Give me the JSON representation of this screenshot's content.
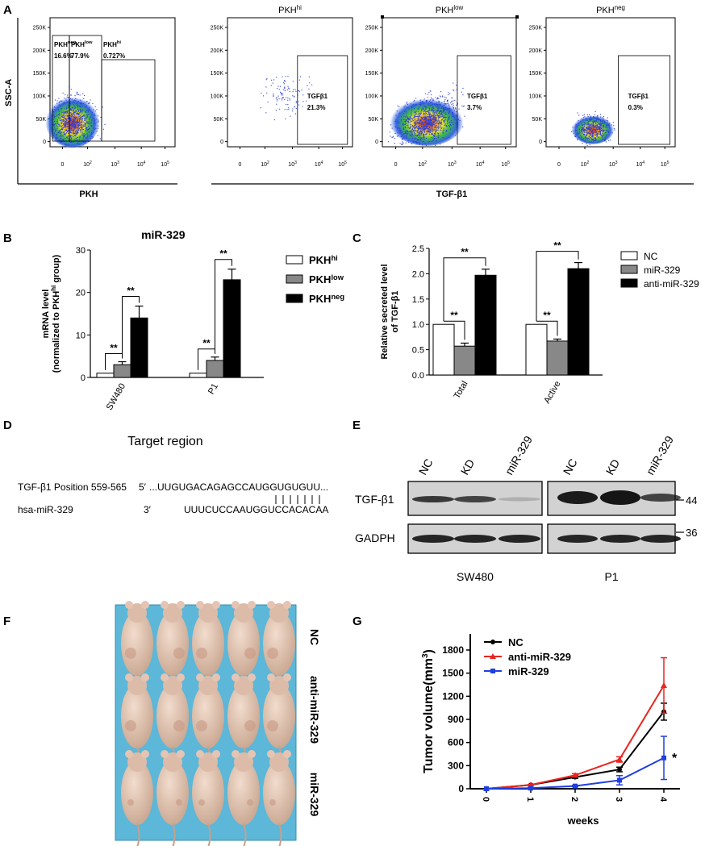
{
  "panels": {
    "a": "A",
    "b": "B",
    "c": "C",
    "d": "D",
    "e": "E",
    "f": "F",
    "g": "G"
  },
  "flow": {
    "y_ticks": [
      "250K",
      "200K",
      "150K",
      "100K",
      "50K",
      "0"
    ],
    "x_ticks": [
      "0",
      "10",
      "10",
      "10",
      "10"
    ],
    "x_exps": [
      "2",
      "3",
      "4",
      "5"
    ],
    "y_label": "SSC-A",
    "x_label_left": "PKH",
    "x_label_right": "TGF-β1",
    "gate_prefix": "PKH",
    "gates": [
      {
        "sup": "neg",
        "pct": "16.6%"
      },
      {
        "sup": "low",
        "pct": "77.9%"
      },
      {
        "sup": "hi",
        "pct": "0.727%"
      }
    ],
    "plot_titles": [
      {
        "base": "PKH",
        "sup": "hi"
      },
      {
        "base": "PKH",
        "sup": "low"
      },
      {
        "base": "PKH",
        "sup": "neg"
      }
    ],
    "tgf_gates": [
      {
        "label": "TGFβ1",
        "pct": "21.3%"
      },
      {
        "label": "TGFβ1",
        "pct": "3.7%"
      },
      {
        "label": "TGFβ1",
        "pct": "0.3%"
      }
    ]
  },
  "chart_data": [
    {
      "type": "bar",
      "title": "miR-329",
      "ylabel_line1": "mRNA level",
      "ylabel_line2": "(normalized to PKH",
      "ylabel_sup": "hi",
      "ylabel_tail": " group)",
      "ylim": [
        0,
        30
      ],
      "yticks": [
        "0",
        "10",
        "20",
        "30"
      ],
      "categories": [
        "SW480",
        "P1"
      ],
      "series": [
        {
          "name": "PKH",
          "sup": "hi",
          "color": "#ffffff",
          "values": [
            1.0,
            1.0
          ],
          "errors": [
            0,
            0
          ]
        },
        {
          "name": "PKH",
          "sup": "low",
          "color": "#888888",
          "values": [
            3.0,
            4.0
          ],
          "errors": [
            0.7,
            0.8
          ]
        },
        {
          "name": "PKH",
          "sup": "neg",
          "color": "#000000",
          "values": [
            14.0,
            23.0
          ],
          "errors": [
            2.8,
            2.5
          ]
        }
      ],
      "significance": "**"
    },
    {
      "type": "bar",
      "ylabel_line1": "Relative secreted level",
      "ylabel_line2": "of TGF-β1",
      "ylim": [
        0,
        2.5
      ],
      "yticks": [
        "0.0",
        "0.5",
        "1.0",
        "1.5",
        "2.0",
        "2.5"
      ],
      "categories": [
        "Total",
        "Active"
      ],
      "series": [
        {
          "name": "NC",
          "color": "#ffffff",
          "values": [
            1.0,
            1.0
          ],
          "errors": [
            0,
            0
          ]
        },
        {
          "name": "miR-329",
          "color": "#888888",
          "values": [
            0.57,
            0.67
          ],
          "errors": [
            0.06,
            0.04
          ]
        },
        {
          "name": "anti-miR-329",
          "color": "#000000",
          "values": [
            1.97,
            2.1
          ],
          "errors": [
            0.12,
            0.12
          ]
        }
      ],
      "significance": "**"
    },
    {
      "type": "line",
      "xlabel": "weeks",
      "ylabel": "Tumor volume(mm",
      "ylabel_sup": "3",
      "ylabel_tail": ")",
      "x": [
        0,
        1,
        2,
        3,
        4
      ],
      "xticks": [
        "0",
        "1",
        "2",
        "3",
        "4"
      ],
      "ylim": [
        0,
        1800
      ],
      "yticks": [
        "0",
        "300",
        "600",
        "900",
        "1200",
        "1500",
        "1800"
      ],
      "series": [
        {
          "name": "NC",
          "color": "#000000",
          "marker": "circle",
          "values": [
            0,
            50,
            150,
            250,
            1000
          ],
          "errors": [
            0,
            5,
            15,
            30,
            110
          ]
        },
        {
          "name": "anti-miR-329",
          "color": "#e8251f",
          "marker": "triangle",
          "values": [
            0,
            50,
            175,
            380,
            1340
          ],
          "errors": [
            0,
            5,
            20,
            35,
            360
          ]
        },
        {
          "name": "miR-329",
          "color": "#1f3fe0",
          "marker": "square",
          "values": [
            0,
            8,
            35,
            110,
            400
          ],
          "errors": [
            0,
            3,
            10,
            60,
            280
          ]
        }
      ],
      "annotation": "*"
    }
  ],
  "target": {
    "title": "Target region",
    "row1_label": "TGF-β1 Position 559-565",
    "row1_prime": "5′",
    "row1_seq": "...UUGUGACAGAGCCAUGGUGUGUU...",
    "row2_label": "hsa-miR-329",
    "row2_prime": "3′",
    "row2_seq": "UUUCUCCAAUGGUCCACACAA"
  },
  "blot": {
    "lanes_left": [
      "NC",
      "KD",
      "miR-329"
    ],
    "lanes_right": [
      "NC",
      "KD",
      "miR-329"
    ],
    "rows": [
      "TGF-β1",
      "GADPH"
    ],
    "markers": [
      "44",
      "36"
    ],
    "cells": [
      "SW480",
      "P1"
    ]
  },
  "mice": {
    "groups": [
      "NC",
      "anti-miR-329",
      "miR-329"
    ]
  }
}
